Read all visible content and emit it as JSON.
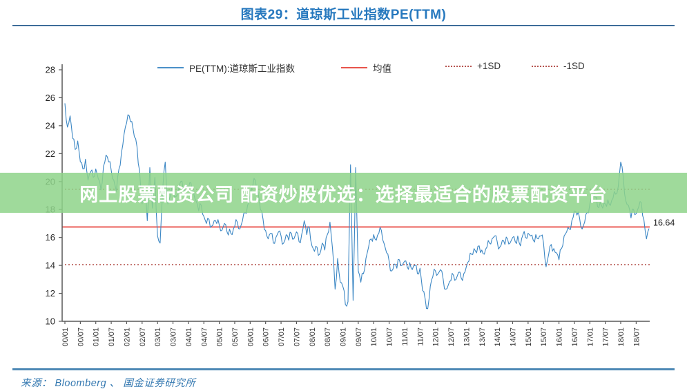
{
  "header": {
    "title": "图表29：道琼斯工业指数PE(TTM)"
  },
  "legend": [
    {
      "label": "PE(TTM):道琼斯工业指数",
      "style": "solid",
      "color": "#4a90c8"
    },
    {
      "label": "均值",
      "style": "solid",
      "color": "#e8534b"
    },
    {
      "label": "+1SD",
      "style": "dotted",
      "color": "#b65450"
    },
    {
      "label": "-1SD",
      "style": "dotted",
      "color": "#b65450"
    }
  ],
  "overlay": {
    "text": "网上股票配资公司 配资炒股优选：选择最适合的股票配资平台",
    "bg": "#8ed489",
    "text_color": "#ffffff"
  },
  "footer": {
    "source": "来源： Bloomberg 、 国金证券研究所"
  },
  "chart_data": {
    "type": "line",
    "title": "图表29：道琼斯工业指数PE(TTM)",
    "ylabel": "",
    "xlabel": "",
    "ylim": [
      10,
      28
    ],
    "y_ticks": [
      28,
      26,
      24,
      22,
      20,
      18,
      16,
      14,
      12,
      10
    ],
    "x_tick_labels": [
      "00/01",
      "00/07",
      "01/01",
      "01/07",
      "02/01",
      "02/07",
      "03/01",
      "03/07",
      "04/01",
      "04/07",
      "05/01",
      "05/07",
      "06/01",
      "06/07",
      "07/01",
      "07/07",
      "08/01",
      "08/07",
      "09/01",
      "09/07",
      "10/01",
      "10/07",
      "11/01",
      "11/07",
      "12/01",
      "12/07",
      "13/01",
      "13/07",
      "14/01",
      "14/07",
      "15/01",
      "15/07",
      "16/01",
      "16/07",
      "17/01",
      "17/07",
      "18/01",
      "18/07"
    ],
    "start_month": "2000/01",
    "freq": "monthly",
    "grid": false,
    "legend_position": "top",
    "series": [
      {
        "name": "PE(TTM):道琼斯工业指数",
        "color": "#3c87c4",
        "values": [
          25.6,
          23.9,
          24.7,
          23.1,
          22.3,
          22.9,
          21.4,
          20.9,
          21.6,
          20.1,
          20.7,
          20.3,
          20.9,
          20.2,
          19.4,
          21.1,
          21.9,
          21.4,
          20.8,
          20.1,
          19.3,
          20.9,
          22.1,
          23.4,
          24.2,
          24.7,
          24.3,
          23.2,
          22.5,
          20.8,
          18.4,
          19.7,
          17.2,
          21.0,
          18.1,
          20.3,
          16.1,
          15.6,
          19.4,
          21.4,
          18.4,
          19.0,
          19.6,
          18.9,
          19.3,
          20.0,
          19.4,
          19.8,
          19.5,
          19.9,
          19.2,
          18.6,
          17.9,
          18.3,
          17.5,
          17.0,
          17.3,
          16.8,
          17.2,
          17.0,
          16.9,
          16.5,
          17.0,
          16.4,
          16.6,
          16.2,
          16.8,
          17.1,
          16.6,
          17.2,
          17.8,
          18.3,
          19.0,
          19.7,
          20.1,
          19.3,
          18.0,
          17.3,
          16.5,
          15.9,
          16.3,
          15.6,
          16.0,
          16.4,
          16.1,
          15.6,
          16.2,
          15.8,
          16.3,
          15.9,
          16.4,
          15.7,
          16.2,
          17.2,
          16.2,
          16.7,
          15.4,
          15.0,
          15.3,
          14.8,
          15.6,
          15.1,
          16.2,
          17.1,
          15.2,
          12.3,
          14.5,
          12.8,
          12.5,
          11.2,
          11.4,
          21.2,
          11.5,
          21.0,
          13.6,
          12.8,
          13.4,
          14.5,
          15.3,
          15.9,
          16.2,
          15.8,
          16.3,
          16.5,
          15.6,
          14.9,
          14.3,
          13.6,
          14.1,
          13.8,
          14.4,
          14.0,
          14.3,
          13.9,
          14.2,
          13.7,
          14.0,
          13.4,
          13.8,
          12.2,
          11.6,
          10.9,
          12.5,
          13.2,
          13.6,
          13.4,
          13.7,
          13.0,
          12.3,
          12.6,
          12.9,
          13.3,
          13.0,
          13.5,
          13.1,
          13.4,
          13.9,
          14.3,
          14.8,
          15.2,
          14.9,
          15.4,
          15.1,
          14.8,
          15.3,
          15.6,
          15.9,
          16.1,
          15.7,
          15.3,
          15.8,
          15.5,
          15.9,
          15.6,
          16.0,
          15.7,
          16.1,
          15.4,
          16.2,
          16.0,
          16.3,
          16.1,
          15.8,
          16.2,
          15.9,
          16.1,
          15.6,
          13.9,
          14.8,
          15.5,
          15.2,
          14.9,
          14.4,
          15.2,
          16.1,
          16.4,
          16.6,
          17.2,
          17.9,
          17.6,
          17.4,
          16.6,
          17.1,
          17.8,
          18.4,
          19.3,
          18.9,
          18.2,
          18.5,
          18.1,
          18.4,
          18.7,
          18.3,
          18.8,
          19.1,
          19.6,
          21.4,
          20.3,
          18.6,
          18.3,
          17.4,
          18.0,
          17.7,
          18.2,
          18.5,
          17.3,
          15.9,
          16.64
        ]
      }
    ],
    "reference_lines": {
      "mean": {
        "label": "均值",
        "value": 16.75,
        "color": "#e8433c",
        "style": "solid"
      },
      "plus_1sd": {
        "label": "+1SD",
        "value": 19.45,
        "color": "#b5534f",
        "style": "dotted"
      },
      "minus_1sd": {
        "label": "-1SD",
        "value": 14.05,
        "color": "#b5534f",
        "style": "dotted"
      }
    },
    "end_label": "16.64"
  }
}
